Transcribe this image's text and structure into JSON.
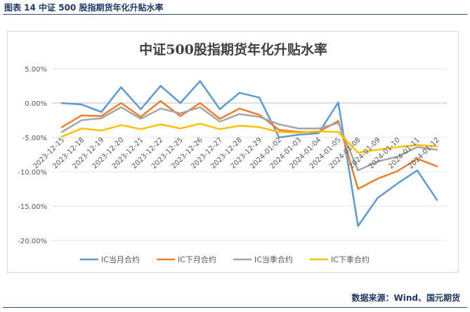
{
  "figure_caption": "图表 14  中证 500 股指期货年化升贴水率",
  "source_note": "数据来源：Wind、国元期货",
  "chart_data": {
    "type": "line",
    "title": "中证500股指期货年化升贴水率",
    "xlabel": "",
    "ylabel": "",
    "ylim": [
      -20,
      5
    ],
    "yticks": [
      5,
      0,
      -5,
      -10,
      -15,
      -20
    ],
    "ytick_labels": [
      "5.00%",
      "0.00%",
      "-5.00%",
      "-10.00%",
      "-15.00%",
      "-20.00%"
    ],
    "categories": [
      "2023-12-15",
      "2023-12-18",
      "2023-12-19",
      "2023-12-20",
      "2023-12-21",
      "2023-12-22",
      "2023-12-25",
      "2023-12-26",
      "2023-12-27",
      "2023-12-28",
      "2023-12-29",
      "2024-01-02",
      "2024-01-03",
      "2024-01-04",
      "2024-01-05",
      "2024-01-08",
      "2024-01-09",
      "2024-01-10",
      "2024-01-11",
      "2024-01-12"
    ],
    "legend_position": "bottom",
    "grid": true,
    "series": [
      {
        "name": "IC当月合约",
        "color": "#5b9bd5",
        "values": [
          0.0,
          -0.2,
          -1.3,
          2.3,
          -0.9,
          2.5,
          0.0,
          3.2,
          -0.9,
          1.5,
          0.8,
          -5.0,
          -4.6,
          -4.4,
          0.1,
          -17.9,
          -13.8,
          -11.7,
          -9.8,
          -14.1
        ]
      },
      {
        "name": "IC下月合约",
        "color": "#ed7d31",
        "values": [
          -3.5,
          -1.8,
          -1.9,
          0.0,
          -2.0,
          0.3,
          -1.9,
          0.0,
          -2.3,
          -0.8,
          -1.7,
          -3.9,
          -4.2,
          -4.2,
          -2.6,
          -12.5,
          -11.0,
          -9.9,
          -8.1,
          -9.2
        ]
      },
      {
        "name": "IC当季合约",
        "color": "#a5a5a5",
        "values": [
          -4.2,
          -2.5,
          -2.2,
          -0.6,
          -2.3,
          -0.8,
          -1.5,
          -0.6,
          -2.7,
          -1.6,
          -2.0,
          -3.1,
          -3.7,
          -3.7,
          -2.9,
          -9.8,
          -8.5,
          -7.8,
          -6.4,
          -6.8
        ]
      },
      {
        "name": "IC下季合约",
        "color": "#ffc000",
        "values": [
          -4.9,
          -3.7,
          -4.0,
          -3.2,
          -3.8,
          -3.1,
          -3.7,
          -3.0,
          -3.8,
          -3.3,
          -3.5,
          -4.2,
          -4.3,
          -4.1,
          -4.2,
          -7.2,
          -6.8,
          -6.4,
          -6.1,
          -6.3
        ]
      }
    ]
  }
}
